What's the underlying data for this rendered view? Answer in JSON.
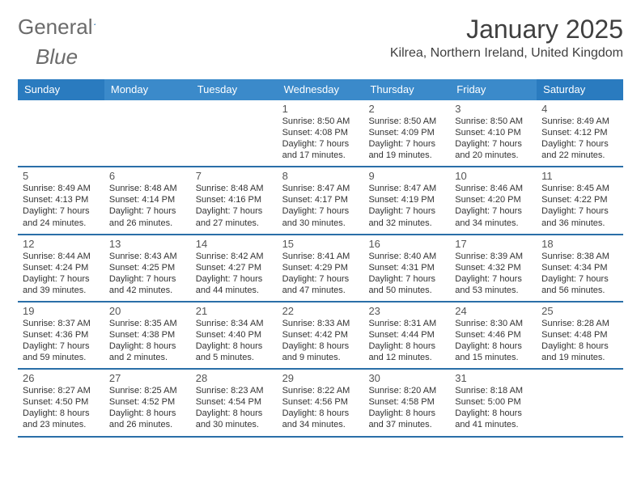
{
  "logo": {
    "word1": "General",
    "word2": "Blue"
  },
  "title": "January 2025",
  "location": "Kilrea, Northern Ireland, United Kingdom",
  "colors": {
    "header_bg": "#3b8aca",
    "header_alt_bg": "#2a7bbf",
    "rule": "#2a6fa8",
    "logo_gray": "#6b6b6b",
    "logo_blue": "#2a7bbf",
    "text": "#333333"
  },
  "day_names": [
    "Sunday",
    "Monday",
    "Tuesday",
    "Wednesday",
    "Thursday",
    "Friday",
    "Saturday"
  ],
  "weeks": [
    [
      {
        "n": "",
        "sr": "",
        "ss": "",
        "dl": ""
      },
      {
        "n": "",
        "sr": "",
        "ss": "",
        "dl": ""
      },
      {
        "n": "",
        "sr": "",
        "ss": "",
        "dl": ""
      },
      {
        "n": "1",
        "sr": "8:50 AM",
        "ss": "4:08 PM",
        "dl": "7 hours and 17 minutes."
      },
      {
        "n": "2",
        "sr": "8:50 AM",
        "ss": "4:09 PM",
        "dl": "7 hours and 19 minutes."
      },
      {
        "n": "3",
        "sr": "8:50 AM",
        "ss": "4:10 PM",
        "dl": "7 hours and 20 minutes."
      },
      {
        "n": "4",
        "sr": "8:49 AM",
        "ss": "4:12 PM",
        "dl": "7 hours and 22 minutes."
      }
    ],
    [
      {
        "n": "5",
        "sr": "8:49 AM",
        "ss": "4:13 PM",
        "dl": "7 hours and 24 minutes."
      },
      {
        "n": "6",
        "sr": "8:48 AM",
        "ss": "4:14 PM",
        "dl": "7 hours and 26 minutes."
      },
      {
        "n": "7",
        "sr": "8:48 AM",
        "ss": "4:16 PM",
        "dl": "7 hours and 27 minutes."
      },
      {
        "n": "8",
        "sr": "8:47 AM",
        "ss": "4:17 PM",
        "dl": "7 hours and 30 minutes."
      },
      {
        "n": "9",
        "sr": "8:47 AM",
        "ss": "4:19 PM",
        "dl": "7 hours and 32 minutes."
      },
      {
        "n": "10",
        "sr": "8:46 AM",
        "ss": "4:20 PM",
        "dl": "7 hours and 34 minutes."
      },
      {
        "n": "11",
        "sr": "8:45 AM",
        "ss": "4:22 PM",
        "dl": "7 hours and 36 minutes."
      }
    ],
    [
      {
        "n": "12",
        "sr": "8:44 AM",
        "ss": "4:24 PM",
        "dl": "7 hours and 39 minutes."
      },
      {
        "n": "13",
        "sr": "8:43 AM",
        "ss": "4:25 PM",
        "dl": "7 hours and 42 minutes."
      },
      {
        "n": "14",
        "sr": "8:42 AM",
        "ss": "4:27 PM",
        "dl": "7 hours and 44 minutes."
      },
      {
        "n": "15",
        "sr": "8:41 AM",
        "ss": "4:29 PM",
        "dl": "7 hours and 47 minutes."
      },
      {
        "n": "16",
        "sr": "8:40 AM",
        "ss": "4:31 PM",
        "dl": "7 hours and 50 minutes."
      },
      {
        "n": "17",
        "sr": "8:39 AM",
        "ss": "4:32 PM",
        "dl": "7 hours and 53 minutes."
      },
      {
        "n": "18",
        "sr": "8:38 AM",
        "ss": "4:34 PM",
        "dl": "7 hours and 56 minutes."
      }
    ],
    [
      {
        "n": "19",
        "sr": "8:37 AM",
        "ss": "4:36 PM",
        "dl": "7 hours and 59 minutes."
      },
      {
        "n": "20",
        "sr": "8:35 AM",
        "ss": "4:38 PM",
        "dl": "8 hours and 2 minutes."
      },
      {
        "n": "21",
        "sr": "8:34 AM",
        "ss": "4:40 PM",
        "dl": "8 hours and 5 minutes."
      },
      {
        "n": "22",
        "sr": "8:33 AM",
        "ss": "4:42 PM",
        "dl": "8 hours and 9 minutes."
      },
      {
        "n": "23",
        "sr": "8:31 AM",
        "ss": "4:44 PM",
        "dl": "8 hours and 12 minutes."
      },
      {
        "n": "24",
        "sr": "8:30 AM",
        "ss": "4:46 PM",
        "dl": "8 hours and 15 minutes."
      },
      {
        "n": "25",
        "sr": "8:28 AM",
        "ss": "4:48 PM",
        "dl": "8 hours and 19 minutes."
      }
    ],
    [
      {
        "n": "26",
        "sr": "8:27 AM",
        "ss": "4:50 PM",
        "dl": "8 hours and 23 minutes."
      },
      {
        "n": "27",
        "sr": "8:25 AM",
        "ss": "4:52 PM",
        "dl": "8 hours and 26 minutes."
      },
      {
        "n": "28",
        "sr": "8:23 AM",
        "ss": "4:54 PM",
        "dl": "8 hours and 30 minutes."
      },
      {
        "n": "29",
        "sr": "8:22 AM",
        "ss": "4:56 PM",
        "dl": "8 hours and 34 minutes."
      },
      {
        "n": "30",
        "sr": "8:20 AM",
        "ss": "4:58 PM",
        "dl": "8 hours and 37 minutes."
      },
      {
        "n": "31",
        "sr": "8:18 AM",
        "ss": "5:00 PM",
        "dl": "8 hours and 41 minutes."
      },
      {
        "n": "",
        "sr": "",
        "ss": "",
        "dl": ""
      }
    ]
  ],
  "labels": {
    "sunrise": "Sunrise: ",
    "sunset": "Sunset: ",
    "daylight": "Daylight: "
  }
}
